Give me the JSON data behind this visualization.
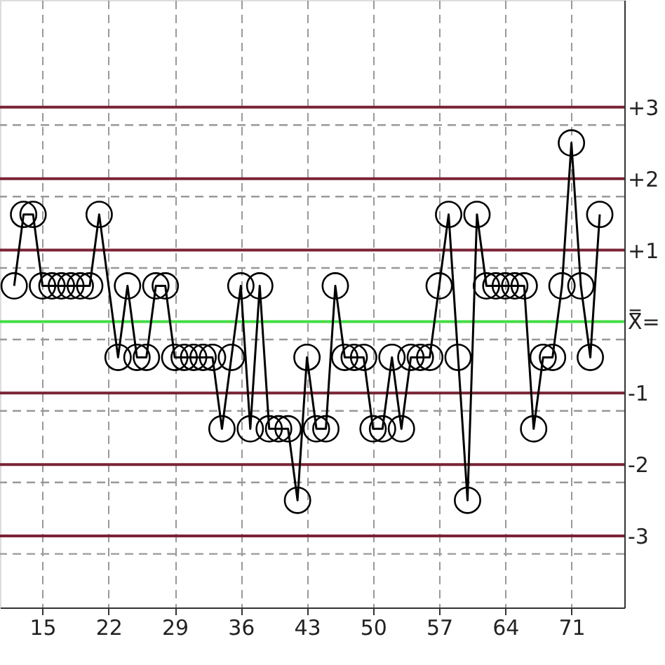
{
  "chart_data": {
    "type": "line",
    "marker": "circle",
    "line_style": "solid",
    "grid": "x",
    "xlim": [
      10.5,
      76.6
    ],
    "xticks": [
      15,
      22,
      29,
      36,
      43,
      50,
      57,
      64,
      71
    ],
    "ylim": [
      -4.0,
      4.5
    ],
    "yticks": [
      {
        "value": 3,
        "label": "+3"
      },
      {
        "value": 2,
        "label": "+2"
      },
      {
        "value": 1,
        "label": "+1"
      },
      {
        "value": 0,
        "label": "X̿="
      },
      {
        "value": -1,
        "label": "-1"
      },
      {
        "value": -2,
        "label": "-2"
      },
      {
        "value": -3,
        "label": "-3"
      }
    ],
    "x": [
      12,
      13,
      14,
      15,
      16,
      17,
      18,
      19,
      20,
      21,
      23,
      24,
      25,
      26,
      27,
      28,
      29,
      30,
      31,
      32,
      33,
      34,
      35,
      36,
      37,
      38,
      39,
      40,
      41,
      42,
      43,
      44,
      45,
      46,
      47,
      48,
      49,
      50,
      51,
      52,
      53,
      54,
      55,
      56,
      57,
      58,
      59,
      60,
      61,
      62,
      63,
      64,
      65,
      66,
      67,
      68,
      69,
      70,
      71,
      72,
      73,
      74
    ],
    "series": [
      {
        "color": "#000000",
        "values": [
          0.5,
          1.5,
          1.5,
          0.5,
          0.5,
          0.5,
          0.5,
          0.5,
          0.5,
          1.5,
          -0.5,
          0.5,
          -0.5,
          -0.5,
          0.5,
          0.5,
          -0.5,
          -0.5,
          -0.5,
          -0.5,
          -0.5,
          -1.5,
          -0.5,
          0.5,
          -1.5,
          0.5,
          -1.5,
          -1.5,
          -1.5,
          -2.5,
          -0.5,
          -1.5,
          -1.5,
          0.5,
          -0.5,
          -0.5,
          -0.5,
          -1.5,
          -1.5,
          -0.5,
          -1.5,
          -0.5,
          -0.5,
          -0.5,
          0.5,
          1.5,
          -0.5,
          -2.5,
          1.5,
          0.5,
          0.5,
          0.5,
          0.5,
          0.5,
          -1.5,
          -0.5,
          -0.5,
          0.5,
          2.5,
          0.5,
          -0.5,
          1.5
        ]
      }
    ],
    "ref_lines": [
      {
        "axis": "y",
        "value": 2.75,
        "color": "#999999",
        "line_style": "dashed"
      },
      {
        "axis": "y",
        "value": 1.75,
        "color": "#999999",
        "line_style": "dashed"
      },
      {
        "axis": "y",
        "value": 0.75,
        "color": "#999999",
        "line_style": "dashed"
      },
      {
        "axis": "y",
        "value": -0.25,
        "color": "#999999",
        "line_style": "dashed"
      },
      {
        "axis": "y",
        "value": -1.25,
        "color": "#999999",
        "line_style": "dashed"
      },
      {
        "axis": "y",
        "value": -2.25,
        "color": "#999999",
        "line_style": "dashed"
      },
      {
        "axis": "y",
        "value": -3.25,
        "color": "#999999",
        "line_style": "dashed"
      },
      {
        "axis": "y",
        "value": 3,
        "color": "#7a2335"
      },
      {
        "axis": "y",
        "value": 2,
        "color": "#7a2335"
      },
      {
        "axis": "y",
        "value": 1,
        "color": "#7a2335"
      },
      {
        "axis": "y",
        "value": 0,
        "color": "#44dd44"
      },
      {
        "axis": "y",
        "value": -1,
        "color": "#7a2335"
      },
      {
        "axis": "y",
        "value": -2,
        "color": "#7a2335"
      },
      {
        "axis": "y",
        "value": -3,
        "color": "#7a2335"
      }
    ]
  }
}
